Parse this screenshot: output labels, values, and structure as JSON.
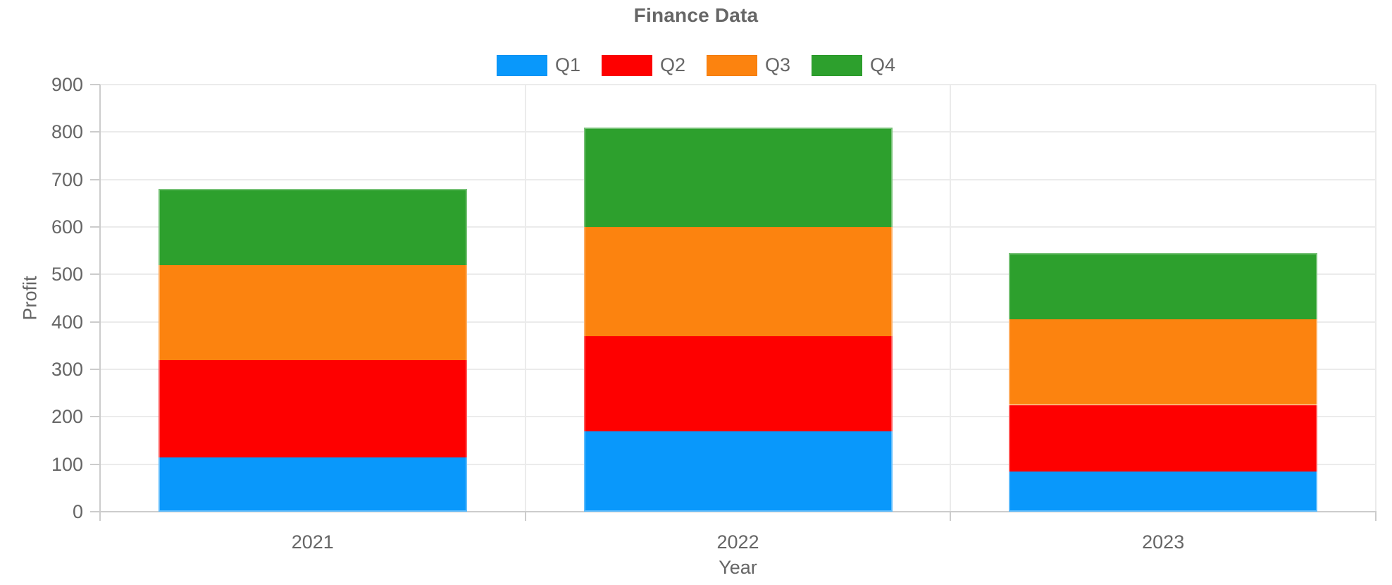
{
  "title": "Finance Data",
  "chart_data": {
    "type": "bar",
    "stacked": true,
    "title": "Finance Data",
    "xlabel": "Year",
    "ylabel": "Profit",
    "categories": [
      "2021",
      "2022",
      "2023"
    ],
    "series": [
      {
        "name": "Q1",
        "color": "#0998FB",
        "values": [
          115,
          170,
          85
        ]
      },
      {
        "name": "Q2",
        "color": "#FE0000",
        "values": [
          205,
          200,
          140
        ]
      },
      {
        "name": "Q3",
        "color": "#FC830F",
        "values": [
          200,
          230,
          180
        ]
      },
      {
        "name": "Q4",
        "color": "#2DA02D",
        "values": [
          160,
          210,
          140
        ]
      }
    ],
    "stack_totals": [
      680,
      810,
      545
    ],
    "ylim": [
      0,
      900
    ],
    "ytick_step": 100,
    "ytick_labels": [
      "0",
      "100",
      "200",
      "300",
      "400",
      "500",
      "600",
      "700",
      "800",
      "900"
    ],
    "grid": true,
    "legend_position": "top"
  },
  "colors": {
    "text": "#666666",
    "gridline": "#ebebeb",
    "axis": "#cccccc",
    "background": "#ffffff"
  }
}
